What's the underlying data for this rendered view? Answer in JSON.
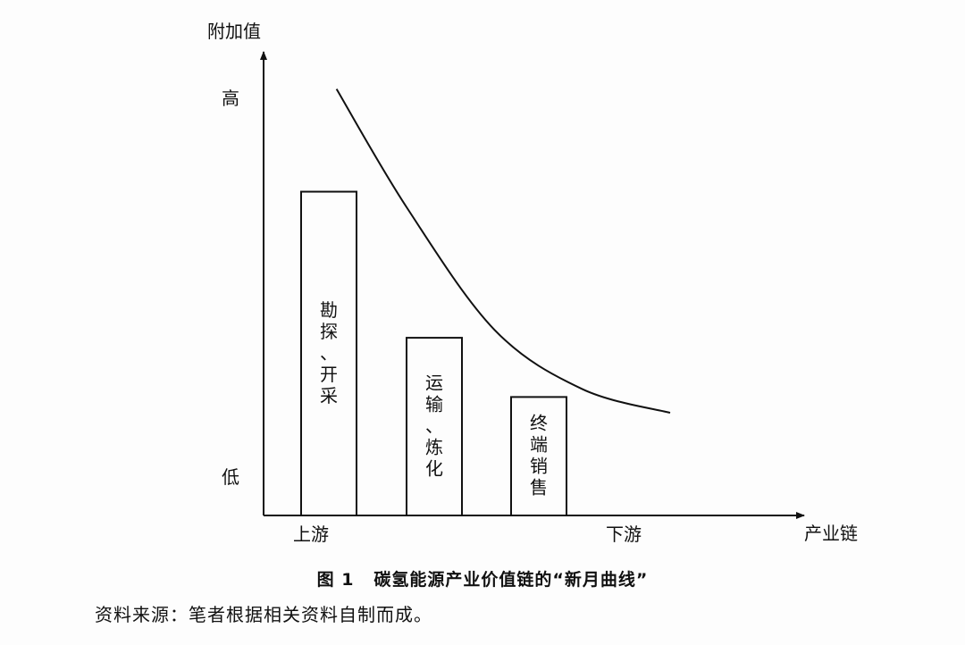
{
  "chart_data": {
    "type": "bar",
    "ylabel": "附加值",
    "xlabel": "产业链",
    "y_tick_labels": {
      "high": "高",
      "low": "低"
    },
    "x_tick_labels": {
      "left": "上游",
      "right": "下游"
    },
    "categories": [
      "勘探、开采",
      "运输、炼化",
      "终端销售"
    ],
    "values": [
      0.82,
      0.45,
      0.3
    ],
    "ylim": [
      0,
      1
    ],
    "curve": {
      "type": "line",
      "note": "新月曲线",
      "points": [
        [
          0.05,
          1.08
        ],
        [
          0.25,
          0.78
        ],
        [
          0.5,
          0.47
        ],
        [
          0.75,
          0.32
        ],
        [
          1.0,
          0.26
        ]
      ]
    },
    "grid": false,
    "legend": "none"
  },
  "caption": {
    "number": "图 1",
    "text": "碳氢能源产业价值链的“新月曲线”"
  },
  "source": "资料来源：笔者根据相关资料自制而成。"
}
